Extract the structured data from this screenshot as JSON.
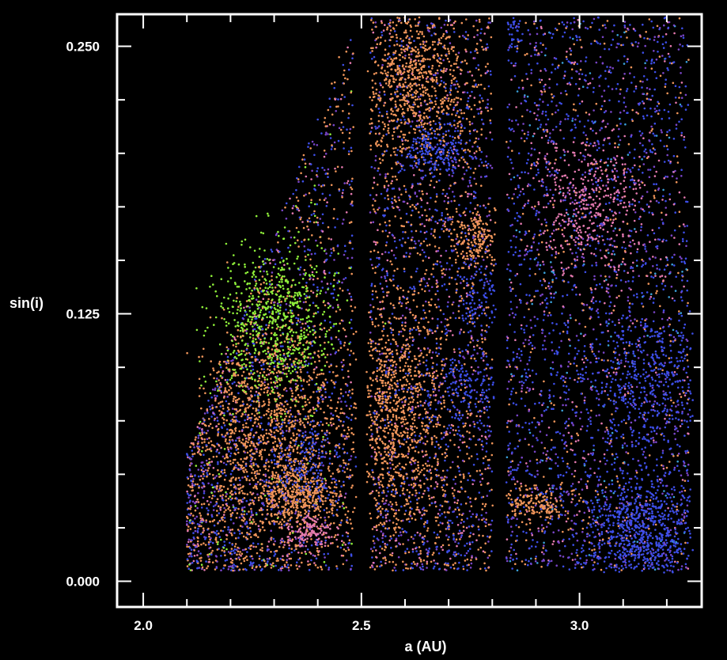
{
  "chart_data": {
    "type": "scatter",
    "title": "",
    "xlabel": "a (AU)",
    "ylabel": "sin(i)",
    "xlim": [
      1.94,
      3.28
    ],
    "ylim": [
      -0.012,
      0.265
    ],
    "x_ticks": [
      {
        "value": 2.0,
        "label": "2.0"
      },
      {
        "value": 2.5,
        "label": "2.5"
      },
      {
        "value": 3.0,
        "label": "3.0"
      }
    ],
    "y_ticks": [
      {
        "value": 0.0,
        "label": "0.000"
      },
      {
        "value": 0.125,
        "label": "0.125"
      },
      {
        "value": 0.25,
        "label": "0.250"
      }
    ],
    "x_minor_step": 0.1,
    "y_minor_step": 0.025,
    "grid": false,
    "background": "#000000",
    "frame_color": "#ffffff",
    "point_colors": {
      "orange": "#f0955a",
      "pink": "#e57ab0",
      "blue": "#3d4ee8",
      "violet": "#7a45c8",
      "green": "#8ff03a",
      "cyan": "#3aa0d8"
    },
    "kirkwood_gaps_au": [
      2.5,
      2.82
    ],
    "clusters": [
      {
        "a": 2.3,
        "sin_i": 0.12,
        "sd_a": 0.07,
        "sd_sin_i": 0.017,
        "n": 700,
        "color": "green"
      },
      {
        "a": 2.29,
        "sin_i": 0.065,
        "sd_a": 0.08,
        "sd_sin_i": 0.028,
        "n": 1100,
        "color": "orange"
      },
      {
        "a": 2.36,
        "sin_i": 0.04,
        "sd_a": 0.04,
        "sd_sin_i": 0.006,
        "n": 300,
        "color": "orange"
      },
      {
        "a": 2.38,
        "sin_i": 0.023,
        "sd_a": 0.03,
        "sd_sin_i": 0.004,
        "n": 130,
        "color": "pink"
      },
      {
        "a": 2.37,
        "sin_i": 0.056,
        "sd_a": 0.05,
        "sd_sin_i": 0.01,
        "n": 150,
        "color": "blue"
      },
      {
        "a": 2.62,
        "sin_i": 0.232,
        "sd_a": 0.06,
        "sd_sin_i": 0.02,
        "n": 650,
        "color": "orange"
      },
      {
        "a": 2.67,
        "sin_i": 0.202,
        "sd_a": 0.04,
        "sd_sin_i": 0.006,
        "n": 200,
        "color": "blue"
      },
      {
        "a": 2.76,
        "sin_i": 0.16,
        "sd_a": 0.03,
        "sd_sin_i": 0.008,
        "n": 180,
        "color": "orange"
      },
      {
        "a": 2.77,
        "sin_i": 0.135,
        "sd_a": 0.03,
        "sd_sin_i": 0.01,
        "n": 100,
        "color": "blue"
      },
      {
        "a": 2.74,
        "sin_i": 0.088,
        "sd_a": 0.04,
        "sd_sin_i": 0.01,
        "n": 140,
        "color": "blue"
      },
      {
        "a": 2.58,
        "sin_i": 0.075,
        "sd_a": 0.06,
        "sd_sin_i": 0.03,
        "n": 900,
        "color": "orange"
      },
      {
        "a": 2.89,
        "sin_i": 0.036,
        "sd_a": 0.04,
        "sd_sin_i": 0.004,
        "n": 170,
        "color": "orange"
      },
      {
        "a": 3.03,
        "sin_i": 0.176,
        "sd_a": 0.07,
        "sd_sin_i": 0.017,
        "n": 420,
        "color": "pink"
      },
      {
        "a": 3.16,
        "sin_i": 0.093,
        "sd_a": 0.07,
        "sd_sin_i": 0.018,
        "n": 420,
        "color": "blue"
      },
      {
        "a": 3.14,
        "sin_i": 0.024,
        "sd_a": 0.06,
        "sd_sin_i": 0.012,
        "n": 650,
        "color": "blue"
      },
      {
        "a": 3.12,
        "sin_i": 0.28,
        "sd_a": 0.03,
        "sd_sin_i": 0.01,
        "n": 60,
        "color": "orange"
      },
      {
        "a": 2.85,
        "sin_i": 0.258,
        "sd_a": 0.01,
        "sd_sin_i": 0.004,
        "n": 30,
        "color": "blue"
      }
    ],
    "background_regions": [
      {
        "a_min": 2.1,
        "a_max": 2.48,
        "sin_i_min": 0.005,
        "sin_i_max": 0.255,
        "n": 2200,
        "colors": [
          "orange",
          "blue",
          "violet",
          "pink",
          "green"
        ],
        "weights": [
          0.35,
          0.3,
          0.2,
          0.1,
          0.05
        ]
      },
      {
        "a_min": 2.52,
        "a_max": 2.8,
        "sin_i_min": 0.005,
        "sin_i_max": 0.3,
        "n": 2600,
        "colors": [
          "orange",
          "blue",
          "violet",
          "pink"
        ],
        "weights": [
          0.38,
          0.32,
          0.18,
          0.12
        ]
      },
      {
        "a_min": 2.83,
        "a_max": 3.25,
        "sin_i_min": 0.005,
        "sin_i_max": 0.3,
        "n": 3200,
        "colors": [
          "blue",
          "violet",
          "pink",
          "orange",
          "cyan"
        ],
        "weights": [
          0.45,
          0.25,
          0.12,
          0.13,
          0.05
        ]
      }
    ]
  }
}
